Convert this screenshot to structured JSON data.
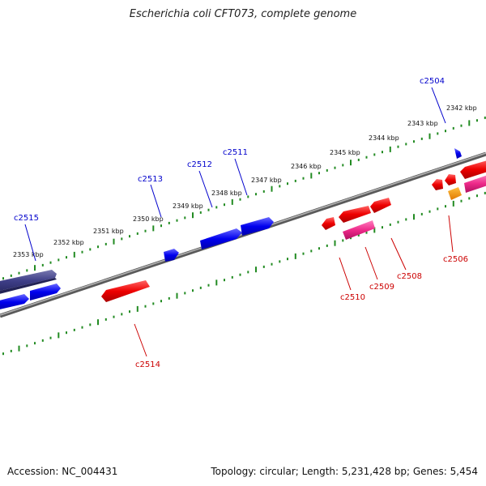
{
  "title": "Escherichia coli CFT073, complete genome",
  "footer": {
    "accession": "Accession: NC_004431",
    "summary": "Topology: circular; Length: 5,231,428 bp; Genes: 5,454"
  },
  "colors": {
    "forward_label": "#0000cc",
    "reverse_label": "#cc0000",
    "tick": "#228B22",
    "backbone": "#8a8a8a"
  },
  "tick_labels": [
    "2342 kbp",
    "2343 kbp",
    "2344 kbp",
    "2345 kbp",
    "2346 kbp",
    "2347 kbp",
    "2348 kbp",
    "2349 kbp",
    "2350 kbp",
    "2351 kbp",
    "2352 kbp",
    "2353 kbp"
  ],
  "forward_genes": [
    "c2504",
    "c2511",
    "c2512",
    "c2513",
    "c2515"
  ],
  "reverse_genes": [
    "c2506",
    "c2508",
    "c2509",
    "c2510",
    "c2514"
  ]
}
